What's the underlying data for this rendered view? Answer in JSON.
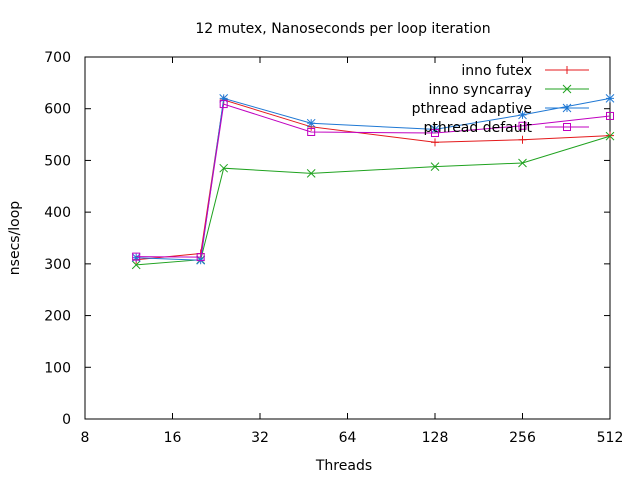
{
  "chart_data": {
    "type": "line",
    "title": "12 mutex, Nanoseconds per loop iteration",
    "xlabel": "Threads",
    "ylabel": "nsecs/loop",
    "xscale": "log2",
    "xlim": [
      8,
      512
    ],
    "ylim": [
      0,
      700
    ],
    "x_ticks": [
      8,
      16,
      32,
      64,
      128,
      256,
      512
    ],
    "x_tick_labels": [
      "8",
      "16",
      "32",
      "64",
      "128",
      "256",
      "512"
    ],
    "y_ticks": [
      0,
      100,
      200,
      300,
      400,
      500,
      600,
      700
    ],
    "y_tick_labels": [
      "0",
      "100",
      "200",
      "300",
      "400",
      "500",
      "600",
      "700"
    ],
    "grid": false,
    "legend_position": "top-right",
    "series": [
      {
        "name": "inno futex",
        "color": "#e41a1c",
        "marker": "plus",
        "x": [
          12,
          20,
          24,
          48,
          128,
          256,
          512
        ],
        "y": [
          308,
          320,
          617,
          565,
          535,
          540,
          548
        ]
      },
      {
        "name": "inno syncarray",
        "color": "#1fa21f",
        "marker": "cross",
        "x": [
          12,
          20,
          24,
          48,
          128,
          256,
          512
        ],
        "y": [
          298,
          308,
          485,
          475,
          488,
          495,
          547
        ]
      },
      {
        "name": "pthread adaptive",
        "color": "#1f78d4",
        "marker": "star",
        "x": [
          12,
          20,
          24,
          48,
          128,
          256,
          512
        ],
        "y": [
          312,
          307,
          620,
          572,
          560,
          588,
          620
        ]
      },
      {
        "name": "pthread default",
        "color": "#c000c0",
        "marker": "box",
        "x": [
          12,
          20,
          24,
          48,
          128,
          256,
          512
        ],
        "y": [
          314,
          313,
          609,
          555,
          553,
          567,
          586
        ]
      }
    ]
  }
}
